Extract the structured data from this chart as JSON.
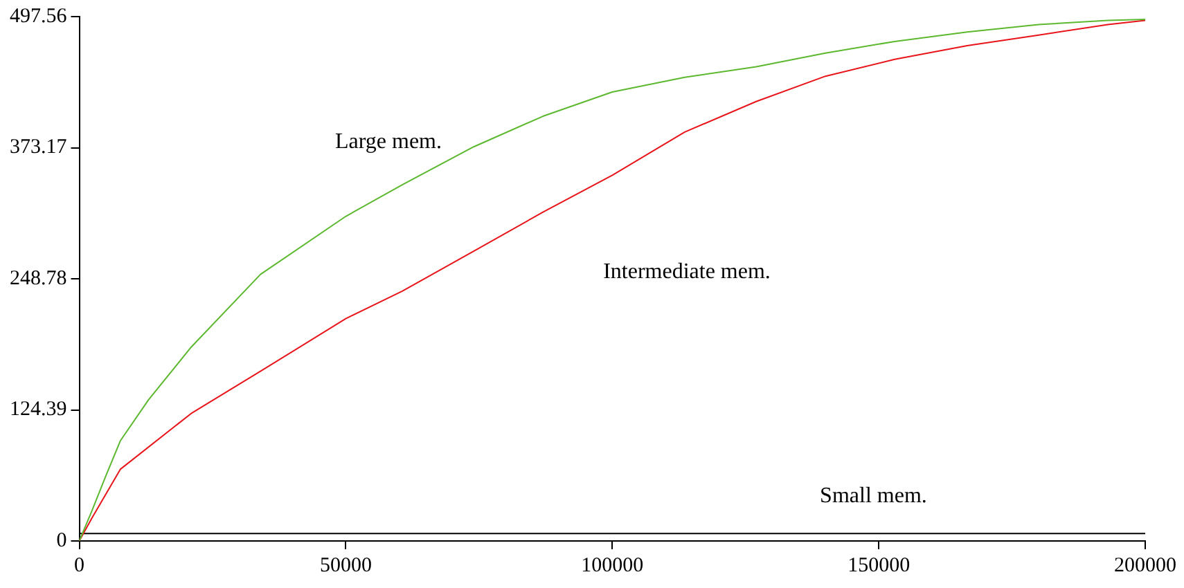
{
  "chart_data": {
    "type": "line",
    "xlim": [
      0,
      200000
    ],
    "xticks": [
      0,
      50000,
      100000,
      150000,
      200000
    ],
    "ylim": [
      0,
      497.56
    ],
    "yticks": [
      0,
      124.39,
      248.78,
      373.17,
      497.56
    ],
    "grid": false,
    "legend": false,
    "marker": "none",
    "line_style": "solid",
    "series": [
      {
        "color": "#5cb82e",
        "x": [
          0,
          2400,
          5000,
          7700,
          13000,
          21000,
          34000,
          50000,
          60600,
          74000,
          87000,
          100000,
          113600,
          127000,
          140000,
          153000,
          166600,
          180000,
          193000,
          200000
        ],
        "values": [
          0,
          29,
          62,
          95,
          134,
          184,
          253,
          308,
          338,
          374,
          403,
          426,
          440,
          450,
          463,
          474,
          483,
          490,
          494,
          495
        ]
      },
      {
        "color": "#e8141a",
        "x": [
          0,
          2400,
          7700,
          21000,
          34000,
          50000,
          60600,
          74000,
          87000,
          100000,
          113600,
          127000,
          140000,
          153000,
          166600,
          180000,
          193000,
          200000
        ],
        "values": [
          0,
          22,
          68,
          121,
          161,
          211,
          237,
          275,
          312,
          347,
          388,
          417,
          441,
          457,
          470,
          480,
          490,
          494
        ]
      },
      {
        "color": "#000000",
        "x": [
          0,
          50000,
          100000,
          150000,
          200000
        ],
        "values": [
          7,
          7,
          7,
          7,
          7
        ]
      }
    ],
    "annotations": [
      "Large mem.",
      "Intermediate mem.",
      "Small mem."
    ]
  }
}
